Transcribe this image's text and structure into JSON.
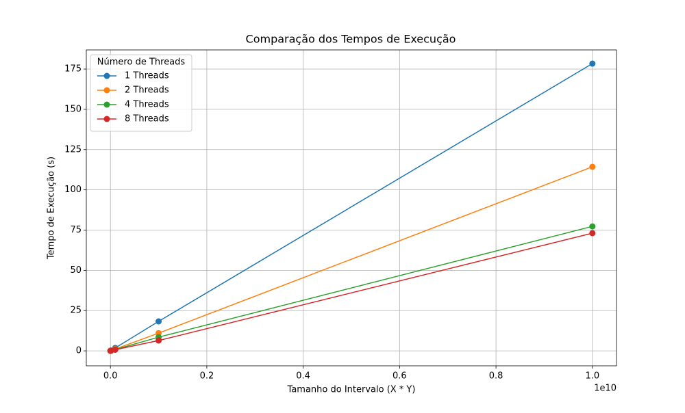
{
  "chart_data": {
    "type": "line",
    "title": "Comparação dos Tempos de Execução",
    "x_label": "Tamanho do Intervalo (X * Y)",
    "y_label": "Tempo de Execução (s)",
    "x_offset_label": "1e10",
    "legend_title": "Número de Threads",
    "legend_position": "upper left",
    "grid": true,
    "x": [
      1000000,
      10000000,
      100000000,
      1000000000,
      10000000000
    ],
    "series": [
      {
        "name": "1 Threads",
        "color": "#1f77b4",
        "values": [
          0.02,
          0.2,
          1.8,
          18.3,
          178.4
        ]
      },
      {
        "name": "2 Threads",
        "color": "#ff7f0e",
        "values": [
          0.01,
          0.1,
          1.1,
          11.0,
          114.3
        ]
      },
      {
        "name": "4 Threads",
        "color": "#2ca02c",
        "values": [
          0.01,
          0.08,
          0.8,
          8.5,
          77.3
        ]
      },
      {
        "name": "8 Threads",
        "color": "#d62728",
        "values": [
          0.01,
          0.07,
          0.7,
          6.4,
          73.1
        ]
      }
    ],
    "xlim": [
      -500000000,
      10500000000
    ],
    "ylim": [
      -9.3,
      186.9
    ],
    "xticks": [
      {
        "value": 0,
        "label": "0.0"
      },
      {
        "value": 2000000000,
        "label": "0.2"
      },
      {
        "value": 4000000000,
        "label": "0.4"
      },
      {
        "value": 6000000000,
        "label": "0.6"
      },
      {
        "value": 8000000000,
        "label": "0.8"
      },
      {
        "value": 10000000000,
        "label": "1.0"
      }
    ],
    "yticks": [
      0,
      25,
      50,
      75,
      100,
      125,
      150,
      175
    ]
  }
}
